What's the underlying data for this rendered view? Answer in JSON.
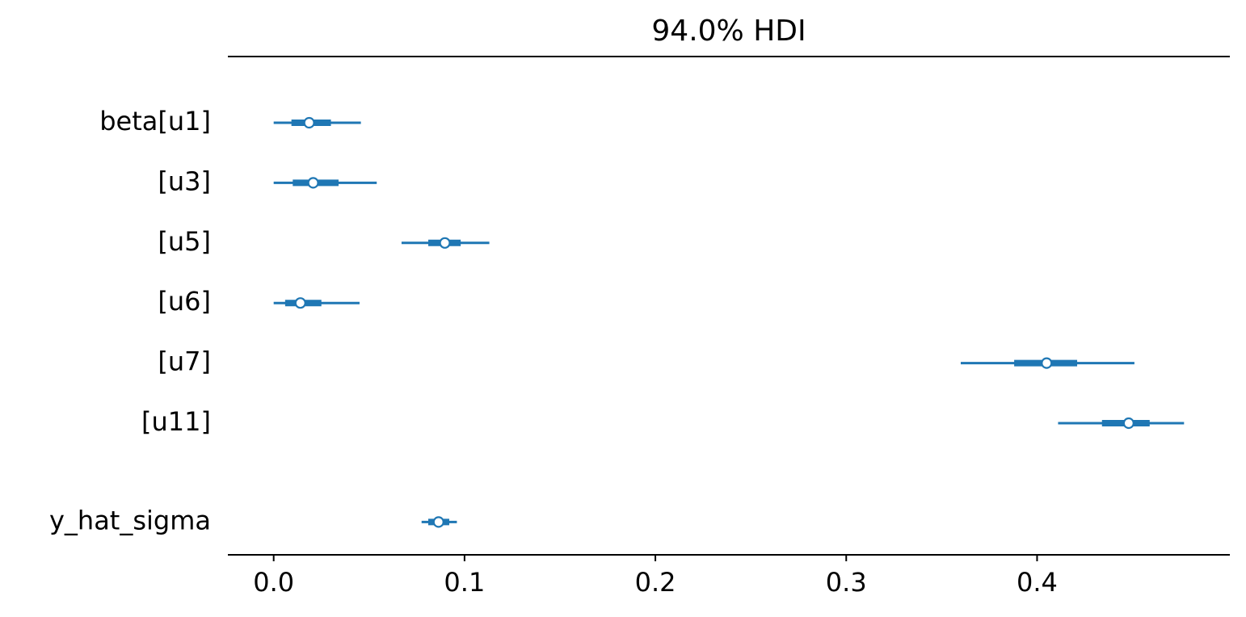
{
  "chart_data": {
    "type": "forest",
    "title": "94.0% HDI",
    "categories": [
      "beta[u1]",
      "[u3]",
      "[u5]",
      "[u6]",
      "[u7]",
      "[u11]",
      "y_hat_sigma"
    ],
    "values": [
      0.0186,
      0.0207,
      0.0897,
      0.014,
      0.405,
      0.448,
      0.0864
    ],
    "hdi_low": [
      0,
      0,
      0.067,
      0,
      0.36,
      0.411,
      0.0775
    ],
    "hdi_high": [
      0.0457,
      0.054,
      0.113,
      0.045,
      0.451,
      0.477,
      0.096
    ],
    "q1": [
      0.0093,
      0.01,
      0.081,
      0.006,
      0.388,
      0.434,
      0.081
    ],
    "q3": [
      0.03,
      0.034,
      0.098,
      0.025,
      0.421,
      0.459,
      0.092
    ],
    "color": "#1f77b4",
    "xlim": [
      -0.024,
      0.501
    ],
    "xticks": [
      {
        "value": 0,
        "label": "0.0"
      },
      0.1,
      0.2,
      0.3,
      0.4
    ]
  }
}
